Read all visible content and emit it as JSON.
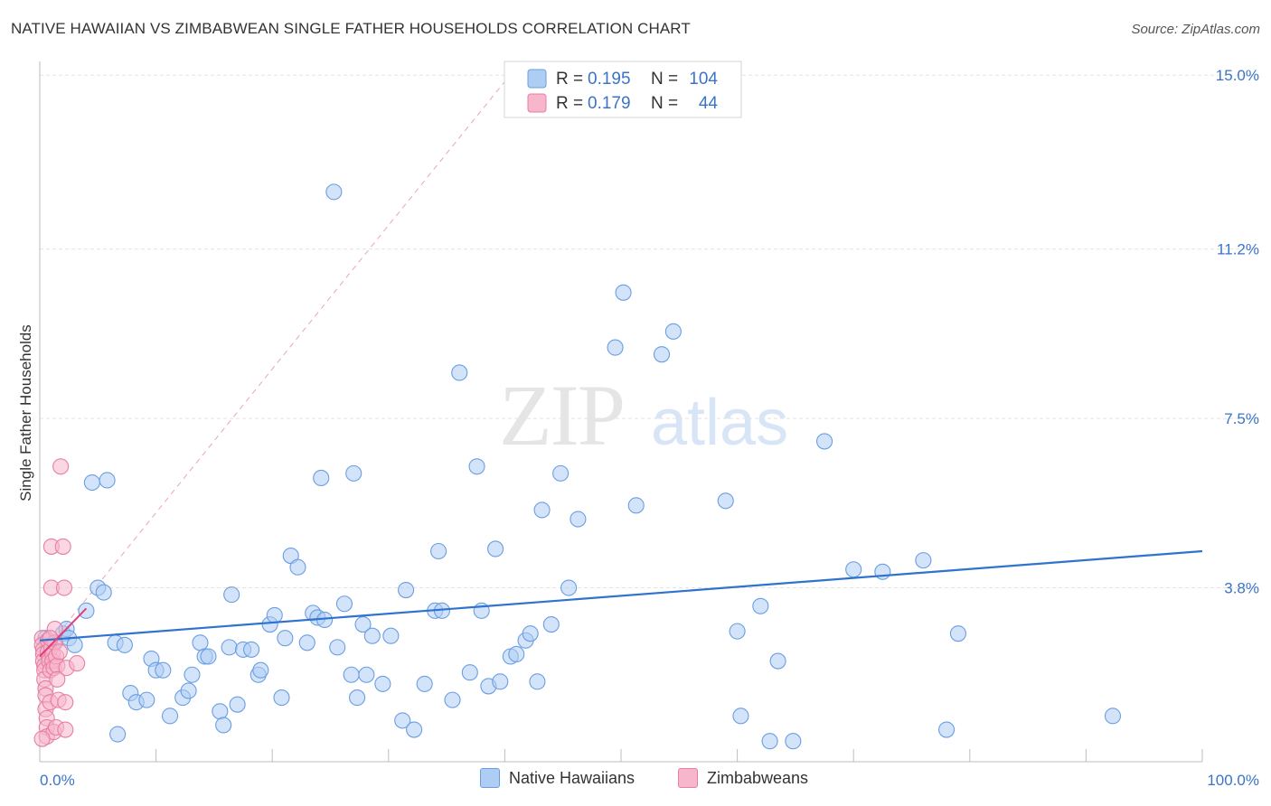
{
  "header": {
    "title": "NATIVE HAWAIIAN VS ZIMBABWEAN SINGLE FATHER HOUSEHOLDS CORRELATION CHART",
    "source": "Source: ZipAtlas.com"
  },
  "watermark": {
    "zip": "ZIP",
    "atlas": "atlas"
  },
  "colors": {
    "blue_fill": "#aecdf5",
    "blue_stroke": "#6a9ee0",
    "blue_line": "#2f72d0",
    "pink_fill": "#f7b6cc",
    "pink_stroke": "#e67fa2",
    "pink_line": "#e0407a",
    "axis_label": "#3a74c8"
  },
  "legend": {
    "rows": [
      {
        "r_label": "R = ",
        "r_value": "0.195",
        "n_label": "N = ",
        "n_value": "104"
      },
      {
        "r_label": "R = ",
        "r_value": "0.179",
        "n_label": "N = ",
        "n_value": "44"
      }
    ]
  },
  "bottom_legend": {
    "items": [
      {
        "label": "Native Hawaiians"
      },
      {
        "label": "Zimbabweans"
      }
    ]
  },
  "chart_data": {
    "type": "scatter",
    "title": "NATIVE HAWAIIAN VS ZIMBABWEAN SINGLE FATHER HOUSEHOLDS CORRELATION CHART",
    "xlabel": "",
    "ylabel": "Single Father Households",
    "xlim": [
      0,
      100
    ],
    "ylim": [
      0,
      15.3
    ],
    "x_tick_labels": [
      "0.0%",
      "100.0%"
    ],
    "y_ticks": [
      3.8,
      7.5,
      11.2,
      15.0
    ],
    "y_tick_labels": [
      "3.8%",
      "7.5%",
      "11.2%",
      "15.0%"
    ],
    "grid": true,
    "legend_position": "top-center",
    "series": [
      {
        "name": "Native Hawaiians",
        "r": 0.195,
        "n": 104,
        "trend": {
          "x": [
            0,
            100
          ],
          "y": [
            2.65,
            4.6
          ],
          "style": "solid"
        },
        "points": [
          [
            0.5,
            2.7
          ],
          [
            0.8,
            2.5
          ],
          [
            1.2,
            2.6
          ],
          [
            2.0,
            2.8
          ],
          [
            2.3,
            2.9
          ],
          [
            2.5,
            2.7
          ],
          [
            3.0,
            2.55
          ],
          [
            4.0,
            3.3
          ],
          [
            4.5,
            6.1
          ],
          [
            5.0,
            3.8
          ],
          [
            5.5,
            3.7
          ],
          [
            5.8,
            6.15
          ],
          [
            6.5,
            2.6
          ],
          [
            6.7,
            0.6
          ],
          [
            7.3,
            2.55
          ],
          [
            7.8,
            1.5
          ],
          [
            8.3,
            1.3
          ],
          [
            9.2,
            1.35
          ],
          [
            9.6,
            2.25
          ],
          [
            10.0,
            2.0
          ],
          [
            10.6,
            2.0
          ],
          [
            11.2,
            1.0
          ],
          [
            12.3,
            1.4
          ],
          [
            12.8,
            1.55
          ],
          [
            13.1,
            1.9
          ],
          [
            13.8,
            2.6
          ],
          [
            14.2,
            2.3
          ],
          [
            14.5,
            2.3
          ],
          [
            15.5,
            1.1
          ],
          [
            15.8,
            0.8
          ],
          [
            16.3,
            2.5
          ],
          [
            16.5,
            3.65
          ],
          [
            17.0,
            1.25
          ],
          [
            17.5,
            2.45
          ],
          [
            18.2,
            2.45
          ],
          [
            18.8,
            1.9
          ],
          [
            19.0,
            2.0
          ],
          [
            19.8,
            3.0
          ],
          [
            20.2,
            3.2
          ],
          [
            20.8,
            1.4
          ],
          [
            21.1,
            2.7
          ],
          [
            21.6,
            4.5
          ],
          [
            22.2,
            4.25
          ],
          [
            23.0,
            2.6
          ],
          [
            23.5,
            3.25
          ],
          [
            23.9,
            3.15
          ],
          [
            24.2,
            6.2
          ],
          [
            24.5,
            3.1
          ],
          [
            25.3,
            12.45
          ],
          [
            25.6,
            2.5
          ],
          [
            26.2,
            3.45
          ],
          [
            26.8,
            1.9
          ],
          [
            27.0,
            6.3
          ],
          [
            27.3,
            1.4
          ],
          [
            27.8,
            3.0
          ],
          [
            28.1,
            1.9
          ],
          [
            28.6,
            2.75
          ],
          [
            29.5,
            1.7
          ],
          [
            30.2,
            2.75
          ],
          [
            31.2,
            0.9
          ],
          [
            31.5,
            3.75
          ],
          [
            32.2,
            0.7
          ],
          [
            33.1,
            1.7
          ],
          [
            34.0,
            3.3
          ],
          [
            34.3,
            4.6
          ],
          [
            34.6,
            3.3
          ],
          [
            35.5,
            1.35
          ],
          [
            36.1,
            8.5
          ],
          [
            37.0,
            1.95
          ],
          [
            37.6,
            6.45
          ],
          [
            38.0,
            3.3
          ],
          [
            38.6,
            1.65
          ],
          [
            39.2,
            4.65
          ],
          [
            39.6,
            1.75
          ],
          [
            40.5,
            2.3
          ],
          [
            41.0,
            2.35
          ],
          [
            41.8,
            2.65
          ],
          [
            42.2,
            2.8
          ],
          [
            42.8,
            1.75
          ],
          [
            43.2,
            5.5
          ],
          [
            44.0,
            3.0
          ],
          [
            44.8,
            6.3
          ],
          [
            45.5,
            3.8
          ],
          [
            46.3,
            5.3
          ],
          [
            49.5,
            9.05
          ],
          [
            50.2,
            10.25
          ],
          [
            51.3,
            5.6
          ],
          [
            53.5,
            8.9
          ],
          [
            54.5,
            9.4
          ],
          [
            59.0,
            5.7
          ],
          [
            60.0,
            2.85
          ],
          [
            60.3,
            1.0
          ],
          [
            62.0,
            3.4
          ],
          [
            62.8,
            0.45
          ],
          [
            63.5,
            2.2
          ],
          [
            64.8,
            0.45
          ],
          [
            67.5,
            7.0
          ],
          [
            70.0,
            4.2
          ],
          [
            72.5,
            4.15
          ],
          [
            76.0,
            4.4
          ],
          [
            78.0,
            0.7
          ],
          [
            79.0,
            2.8
          ],
          [
            92.3,
            1.0
          ]
        ]
      },
      {
        "name": "Zimbabweans",
        "r": 0.179,
        "n": 44,
        "trend": {
          "x": [
            0,
            4.0
          ],
          "y": [
            2.3,
            3.35
          ],
          "style": "solid"
        },
        "trend_extended": {
          "x": [
            0,
            41.4
          ],
          "y": [
            2.3,
            15.3
          ],
          "style": "dashed"
        },
        "points": [
          [
            0.2,
            2.7
          ],
          [
            0.2,
            2.55
          ],
          [
            0.3,
            2.45
          ],
          [
            0.3,
            2.35
          ],
          [
            0.3,
            2.2
          ],
          [
            0.4,
            2.1
          ],
          [
            0.4,
            2.0
          ],
          [
            0.4,
            1.8
          ],
          [
            0.5,
            1.6
          ],
          [
            0.5,
            1.45
          ],
          [
            0.5,
            1.15
          ],
          [
            0.6,
            0.95
          ],
          [
            0.6,
            0.75
          ],
          [
            0.6,
            0.55
          ],
          [
            0.7,
            2.65
          ],
          [
            0.7,
            2.4
          ],
          [
            0.8,
            2.3
          ],
          [
            0.8,
            2.2
          ],
          [
            0.9,
            2.0
          ],
          [
            0.9,
            1.3
          ],
          [
            1.0,
            4.7
          ],
          [
            1.0,
            3.8
          ],
          [
            1.0,
            2.5
          ],
          [
            1.1,
            2.35
          ],
          [
            1.1,
            2.2
          ],
          [
            1.2,
            2.05
          ],
          [
            1.2,
            0.65
          ],
          [
            1.3,
            2.9
          ],
          [
            1.3,
            2.6
          ],
          [
            1.4,
            2.3
          ],
          [
            1.4,
            0.75
          ],
          [
            1.5,
            2.1
          ],
          [
            1.5,
            1.8
          ],
          [
            1.6,
            1.35
          ],
          [
            1.7,
            2.4
          ],
          [
            1.8,
            6.45
          ],
          [
            2.0,
            4.7
          ],
          [
            2.1,
            3.8
          ],
          [
            2.2,
            1.3
          ],
          [
            2.2,
            0.7
          ],
          [
            2.3,
            2.05
          ],
          [
            3.2,
            2.15
          ],
          [
            0.2,
            0.5
          ],
          [
            0.9,
            2.7
          ]
        ]
      }
    ]
  }
}
